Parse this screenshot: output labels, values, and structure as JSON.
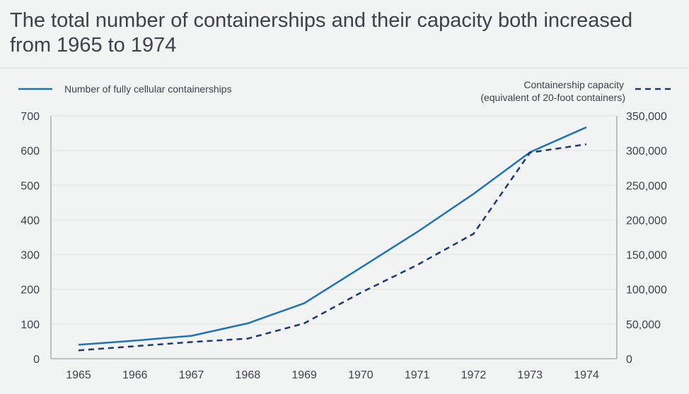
{
  "chart_data": {
    "type": "line",
    "title": "The total number of containerships and their capacity both increased from 1965 to 1974",
    "categories": [
      "1965",
      "1966",
      "1967",
      "1968",
      "1969",
      "1970",
      "1971",
      "1972",
      "1973",
      "1974"
    ],
    "series": [
      {
        "name": "Number of fully cellular containerships",
        "axis": "left",
        "style": "solid",
        "color": "#1f72b8",
        "values": [
          40,
          52,
          66,
          102,
          160,
          262,
          365,
          475,
          595,
          667
        ]
      },
      {
        "name": "Containership capacity (equivalent of 20-foot containers)",
        "name_lines": [
          "Containership capacity",
          "(equivalent of 20-foot containers)"
        ],
        "axis": "right",
        "style": "dashed",
        "color": "#1c3a6e",
        "values": [
          12000,
          18000,
          24000,
          29000,
          51000,
          95000,
          135000,
          180000,
          297000,
          309000
        ]
      }
    ],
    "y_left": {
      "ylim": [
        0,
        700
      ],
      "ticks": [
        0,
        100,
        200,
        300,
        400,
        500,
        600,
        700
      ],
      "tick_labels": [
        "0",
        "100",
        "200",
        "300",
        "400",
        "500",
        "600",
        "700"
      ]
    },
    "y_right": {
      "ylim": [
        0,
        350000
      ],
      "ticks": [
        0,
        50000,
        100000,
        150000,
        200000,
        250000,
        300000,
        350000
      ],
      "tick_labels": [
        "0",
        "50,000",
        "100,000",
        "150,000",
        "200,000",
        "250,000",
        "300,000",
        "350,000"
      ]
    },
    "grid": "horizontal",
    "legend_position": "top"
  },
  "colors": {
    "background": "#f2f3f3",
    "grid": "#dfe2e5",
    "text": "#3d4249"
  }
}
